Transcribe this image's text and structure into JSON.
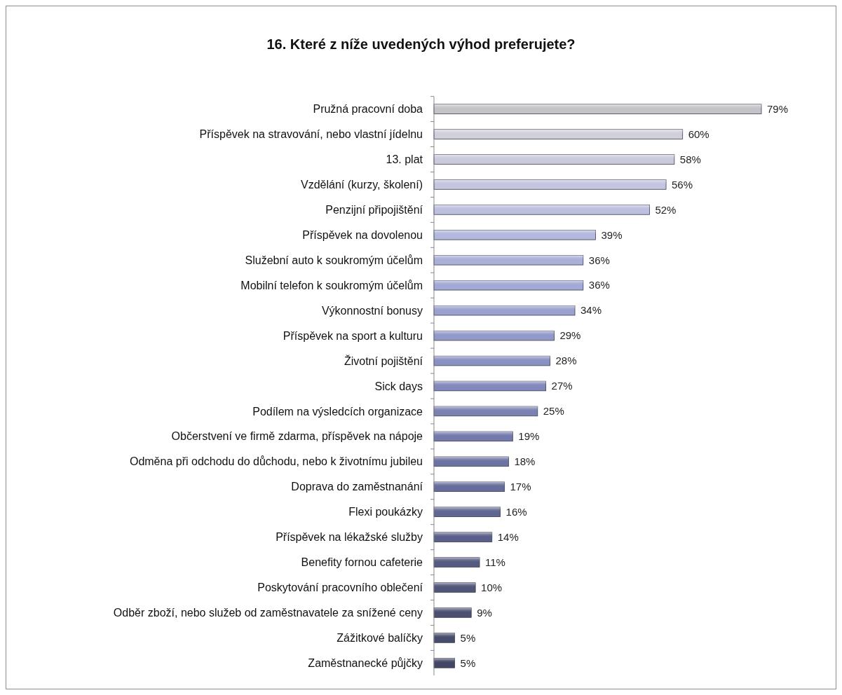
{
  "chart_data": {
    "type": "bar",
    "orientation": "horizontal",
    "title": "16. Které z níže uvedených výhod preferujete?",
    "categories": [
      "Pružná pracovní doba",
      "Příspěvek na stravování, nebo vlastní jídelnu",
      "13. plat",
      "Vzdělání (kurzy, školení)",
      "Penzijní připojištění",
      "Příspěvek na dovolenou",
      "Služební auto k soukromým účelům",
      "Mobilní telefon k soukromým účelům",
      "Výkonnostní bonusy",
      "Příspěvek na sport a kulturu",
      "Životní pojištění",
      "Sick days",
      "Podílem na výsledcích organizace",
      "Občerstvení ve firmě zdarma, příspěvek na nápoje",
      "Odměna při odchodu do důchodu, nebo k životnímu jubileu",
      "Doprava do zaměstnanání",
      "Flexi poukázky",
      "Příspěvek na lékažské služby",
      "Benefity fornou cafeterie",
      "Poskytování pracovního oblečení",
      "Odběr zboží, nebo služeb od zaměstnavatele za snížené ceny",
      "Zážitkové balíčky",
      "Zaměstnanecké půjčky"
    ],
    "values": [
      79,
      60,
      58,
      56,
      52,
      39,
      36,
      36,
      34,
      29,
      28,
      27,
      25,
      19,
      18,
      17,
      16,
      14,
      11,
      10,
      9,
      5,
      5
    ],
    "value_labels": [
      "79%",
      "60%",
      "58%",
      "56%",
      "52%",
      "39%",
      "36%",
      "36%",
      "34%",
      "29%",
      "28%",
      "27%",
      "25%",
      "19%",
      "18%",
      "17%",
      "16%",
      "14%",
      "11%",
      "10%",
      "9%",
      "5%",
      "5%"
    ],
    "colors": [
      "#c4c4c8",
      "#cfd0da",
      "#c9cbdc",
      "#c3c6de",
      "#bcc0de",
      "#b3b8dc",
      "#aab0d8",
      "#a2a9d4",
      "#9aa1ce",
      "#9299c8",
      "#8a91c1",
      "#8289ba",
      "#7b82b3",
      "#737aab",
      "#6c73a3",
      "#666c9b",
      "#606692",
      "#5a6089",
      "#555a81",
      "#505579",
      "#4b5072",
      "#474c6b",
      "#434765"
    ]
  }
}
